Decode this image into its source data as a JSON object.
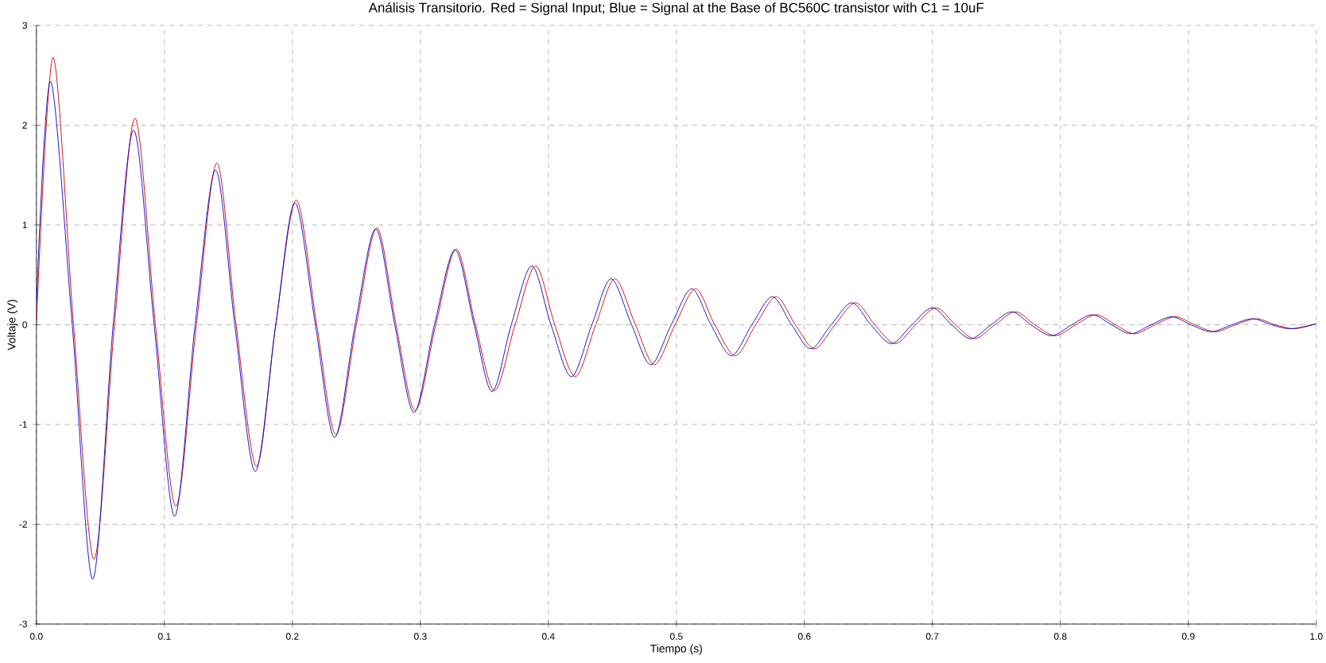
{
  "chart_data": {
    "type": "line",
    "title": "Análisis Transitorio. Red = Signal Input; Blue = Signal at the Base of BC560C transistor with C1 = 10uF",
    "xlabel": "Tiempo (s)",
    "ylabel": "Voltaje (V)",
    "xlim": [
      0,
      1
    ],
    "ylim": [
      -3,
      3
    ],
    "xticks": [
      {
        "value": 0,
        "label": "0.0"
      },
      0.1,
      0.2,
      0.3,
      0.4,
      0.5,
      0.6,
      0.7,
      0.8,
      0.9,
      {
        "value": 1,
        "label": "1.0"
      }
    ],
    "yticks": [
      -3,
      -2,
      -1,
      0,
      1,
      2,
      3
    ],
    "grid": true,
    "series": [
      {
        "color": "#cc0000",
        "x": [
          0,
          0.013,
          0.029,
          0.045,
          0.061,
          0.077,
          0.093,
          0.109,
          0.125,
          0.141,
          0.156,
          0.172,
          0.187,
          0.203,
          0.219,
          0.234,
          0.25,
          0.266,
          0.281,
          0.296,
          0.312,
          0.328,
          0.343,
          0.358,
          0.374,
          0.39,
          0.405,
          0.421,
          0.437,
          0.452,
          0.468,
          0.483,
          0.499,
          0.515,
          0.53,
          0.546,
          0.562,
          0.578,
          0.593,
          0.608,
          0.624,
          0.64,
          0.655,
          0.671,
          0.687,
          0.703,
          0.718,
          0.733,
          0.749,
          0.765,
          0.78,
          0.796,
          0.812,
          0.828,
          0.843,
          0.858,
          0.874,
          0.89,
          0.905,
          0.921,
          0.937,
          0.953,
          0.968,
          0.983,
          1.0
        ],
        "values": [
          0,
          2.68,
          0,
          -2.35,
          0,
          2.07,
          0,
          -1.82,
          0,
          1.62,
          0,
          -1.42,
          0,
          1.25,
          0,
          -1.1,
          0,
          0.97,
          0,
          -0.86,
          0,
          0.76,
          0,
          -0.66,
          0,
          0.59,
          0,
          -0.52,
          0,
          0.46,
          0,
          -0.4,
          0,
          0.36,
          0,
          -0.31,
          0,
          0.28,
          0,
          -0.24,
          0,
          0.22,
          0,
          -0.19,
          0,
          0.17,
          0,
          -0.14,
          0,
          0.13,
          0,
          -0.11,
          0,
          0.1,
          0,
          -0.09,
          0,
          0.08,
          0,
          -0.07,
          0,
          0.06,
          0,
          -0.04,
          0.01
        ]
      },
      {
        "color": "#0000cc",
        "x": [
          0,
          0.011,
          0.028,
          0.044,
          0.06,
          0.076,
          0.092,
          0.108,
          0.124,
          0.14,
          0.155,
          0.171,
          0.187,
          0.202,
          0.218,
          0.233,
          0.249,
          0.265,
          0.28,
          0.295,
          0.311,
          0.327,
          0.342,
          0.356,
          0.371,
          0.387,
          0.402,
          0.418,
          0.434,
          0.449,
          0.465,
          0.48,
          0.496,
          0.512,
          0.527,
          0.543,
          0.559,
          0.575,
          0.59,
          0.605,
          0.621,
          0.637,
          0.652,
          0.668,
          0.684,
          0.7,
          0.715,
          0.73,
          0.746,
          0.762,
          0.777,
          0.793,
          0.809,
          0.825,
          0.84,
          0.855,
          0.871,
          0.887,
          0.902,
          0.918,
          0.934,
          0.95,
          0.965,
          0.98,
          1.0
        ],
        "values": [
          0.2,
          2.44,
          0,
          -2.55,
          0,
          1.95,
          0,
          -1.92,
          0,
          1.55,
          0,
          -1.47,
          0,
          1.22,
          0,
          -1.13,
          0,
          0.96,
          0,
          -0.88,
          0,
          0.75,
          0,
          -0.67,
          0,
          0.59,
          0,
          -0.52,
          0,
          0.46,
          0,
          -0.4,
          0,
          0.36,
          0,
          -0.31,
          0,
          0.28,
          0,
          -0.24,
          0,
          0.22,
          0,
          -0.19,
          0,
          0.17,
          0,
          -0.14,
          0,
          0.13,
          0,
          -0.11,
          0,
          0.1,
          0,
          -0.09,
          0,
          0.08,
          0,
          -0.07,
          0,
          0.06,
          0,
          -0.04,
          0.01
        ]
      }
    ]
  }
}
